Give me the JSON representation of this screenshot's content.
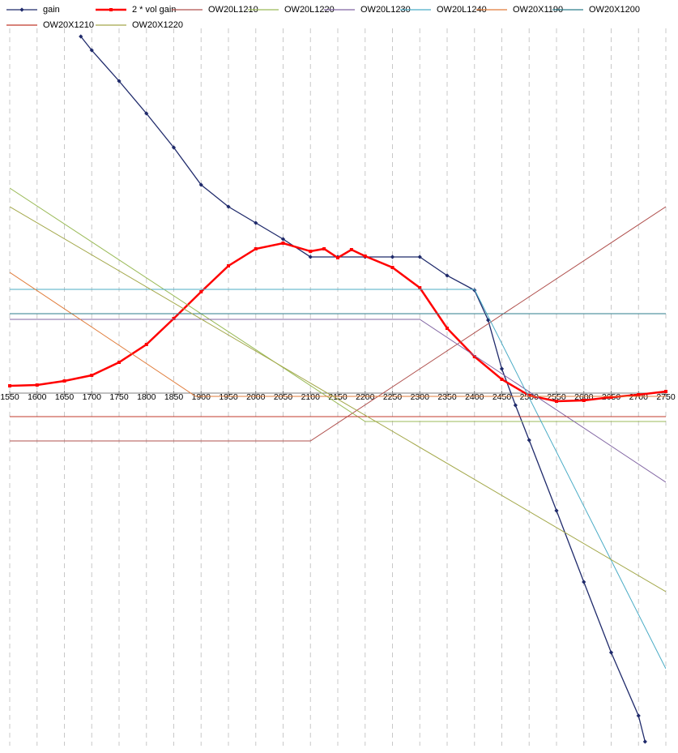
{
  "chart_data": {
    "type": "line",
    "xlim": [
      1550,
      2750
    ],
    "xticks": [
      1550,
      1600,
      1650,
      1700,
      1750,
      1800,
      1850,
      1900,
      1950,
      2000,
      2050,
      2100,
      2150,
      2200,
      2250,
      2300,
      2350,
      2400,
      2450,
      2500,
      2550,
      2600,
      2650,
      2700,
      2750
    ],
    "ylim": [
      -43.5,
      45.5
    ],
    "grid": true,
    "legend": "top",
    "series": [
      {
        "name": "gain",
        "color": "#1f2a6b",
        "marker": "diamond",
        "x": [
          1680,
          1700,
          1750,
          1800,
          1850,
          1900,
          1950,
          2000,
          2050,
          2100,
          2150,
          2200,
          2250,
          2300,
          2350,
          2400,
          2425,
          2450,
          2475,
          2500,
          2550,
          2600,
          2650,
          2700,
          2712
        ],
        "values": [
          44,
          42.3,
          38.5,
          34.5,
          30.3,
          25.7,
          23,
          21,
          19,
          16.8,
          16.8,
          16.8,
          16.8,
          16.8,
          14.5,
          12.7,
          9,
          3,
          -1.5,
          -5.8,
          -14.5,
          -23.3,
          -32,
          -39.8,
          -43
        ]
      },
      {
        "name": "2 * vol gain",
        "color": "#ff0000",
        "marker": "square",
        "x": [
          1550,
          1600,
          1650,
          1700,
          1750,
          1800,
          1850,
          1900,
          1950,
          2000,
          2050,
          2100,
          2125,
          2150,
          2175,
          2200,
          2250,
          2300,
          2350,
          2400,
          2450,
          2500,
          2550,
          2600,
          2650,
          2700,
          2750
        ],
        "values": [
          0.9,
          1,
          1.5,
          2.2,
          3.8,
          6,
          9.2,
          12.5,
          15.7,
          17.8,
          18.5,
          17.5,
          17.8,
          16.7,
          17.7,
          16.9,
          15.5,
          13,
          8,
          4.5,
          1.7,
          -0.3,
          -1,
          -0.9,
          -0.5,
          -0.2,
          0.2
        ]
      },
      {
        "name": "OW20L1210",
        "color": "#b0504d",
        "x": [
          1550,
          2100,
          2750
        ],
        "values": [
          -5.9,
          -5.9,
          23
        ]
      },
      {
        "name": "OW20L1220",
        "color": "#9bbb59",
        "x": [
          1550,
          2200,
          2750
        ],
        "values": [
          25.3,
          -3.5,
          -3.5
        ]
      },
      {
        "name": "OW20L1230",
        "color": "#8064a2",
        "x": [
          1550,
          2300,
          2750
        ],
        "values": [
          9.1,
          9.1,
          -11
        ]
      },
      {
        "name": "OW20L1240",
        "color": "#4bacc6",
        "x": [
          1550,
          2400,
          2750
        ],
        "values": [
          12.8,
          12.8,
          -34
        ]
      },
      {
        "name": "OW20X1190",
        "color": "#e07b39",
        "x": [
          1550,
          1890,
          2750
        ],
        "values": [
          14.9,
          -0.4,
          -0.4
        ]
      },
      {
        "name": "OW20X1200",
        "color": "#2c7e8c",
        "x": [
          1550,
          2750
        ],
        "values": [
          9.8,
          9.8
        ]
      },
      {
        "name": "OW20X1210",
        "color": "#c0392b",
        "x": [
          1550,
          2750
        ],
        "values": [
          -2.9,
          -2.9
        ]
      },
      {
        "name": "OW20X1220",
        "color": "#a3a84a",
        "x": [
          1550,
          2750
        ],
        "values": [
          23,
          -24.5
        ]
      }
    ]
  }
}
